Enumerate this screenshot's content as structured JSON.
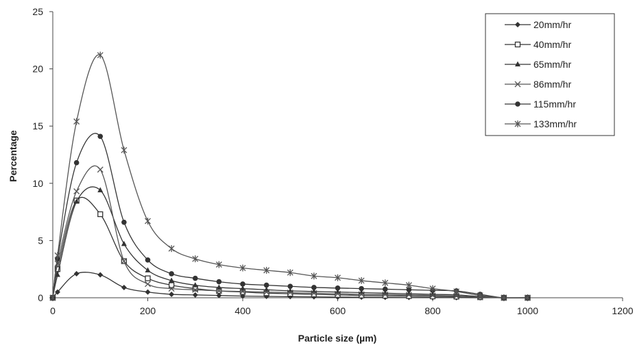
{
  "chart_data": {
    "type": "line",
    "title": "",
    "xlabel": "Particle size (µm)",
    "ylabel": "Percentage",
    "xlim": [
      0,
      1200
    ],
    "ylim": [
      0,
      25
    ],
    "xticks": [
      0,
      200,
      400,
      600,
      800,
      1000,
      1200
    ],
    "yticks": [
      0,
      5,
      10,
      15,
      20,
      25
    ],
    "grid": false,
    "legend_position": "top-right",
    "x": [
      0,
      10,
      50,
      100,
      150,
      200,
      250,
      300,
      350,
      400,
      450,
      500,
      550,
      600,
      650,
      700,
      750,
      800,
      850,
      900,
      950,
      1000
    ],
    "series": [
      {
        "name": "20mm/hr",
        "marker": "diamond",
        "color": "#333333",
        "values": [
          0,
          0.5,
          2.1,
          2.0,
          0.9,
          0.5,
          0.3,
          0.25,
          0.2,
          0.15,
          0.12,
          0.1,
          0.08,
          0.06,
          0.05,
          0.04,
          0.03,
          0.02,
          0.01,
          0,
          0,
          0
        ]
      },
      {
        "name": "40mm/hr",
        "marker": "square-open",
        "color": "#333333",
        "values": [
          0,
          2.5,
          8.5,
          7.3,
          3.2,
          1.7,
          1.1,
          0.8,
          0.6,
          0.5,
          0.4,
          0.35,
          0.3,
          0.25,
          0.2,
          0.18,
          0.15,
          0.12,
          0.1,
          0.05,
          0,
          0
        ]
      },
      {
        "name": "65mm/hr",
        "marker": "triangle",
        "color": "#333333",
        "values": [
          0,
          2.0,
          8.4,
          9.4,
          4.7,
          2.4,
          1.5,
          1.1,
          0.9,
          0.8,
          0.7,
          0.6,
          0.55,
          0.5,
          0.45,
          0.4,
          0.35,
          0.3,
          0.25,
          0.1,
          0,
          0
        ]
      },
      {
        "name": "86mm/hr",
        "marker": "x",
        "color": "#555555",
        "values": [
          0,
          3.0,
          9.3,
          11.2,
          3.2,
          1.2,
          0.8,
          0.7,
          0.6,
          0.55,
          0.5,
          0.45,
          0.4,
          0.35,
          0.3,
          0.28,
          0.25,
          0.2,
          0.15,
          0.05,
          0,
          0
        ]
      },
      {
        "name": "115mm/hr",
        "marker": "circle",
        "color": "#333333",
        "values": [
          0,
          3.4,
          11.8,
          14.1,
          6.6,
          3.3,
          2.1,
          1.7,
          1.4,
          1.2,
          1.1,
          1.0,
          0.9,
          0.85,
          0.8,
          0.75,
          0.7,
          0.65,
          0.6,
          0.3,
          0,
          0
        ]
      },
      {
        "name": "133mm/hr",
        "marker": "asterisk",
        "color": "#555555",
        "values": [
          0,
          3.7,
          15.4,
          21.2,
          12.9,
          6.7,
          4.3,
          3.4,
          2.9,
          2.6,
          2.4,
          2.2,
          1.9,
          1.75,
          1.5,
          1.3,
          1.1,
          0.8,
          0.55,
          0.2,
          0,
          0
        ]
      }
    ]
  }
}
